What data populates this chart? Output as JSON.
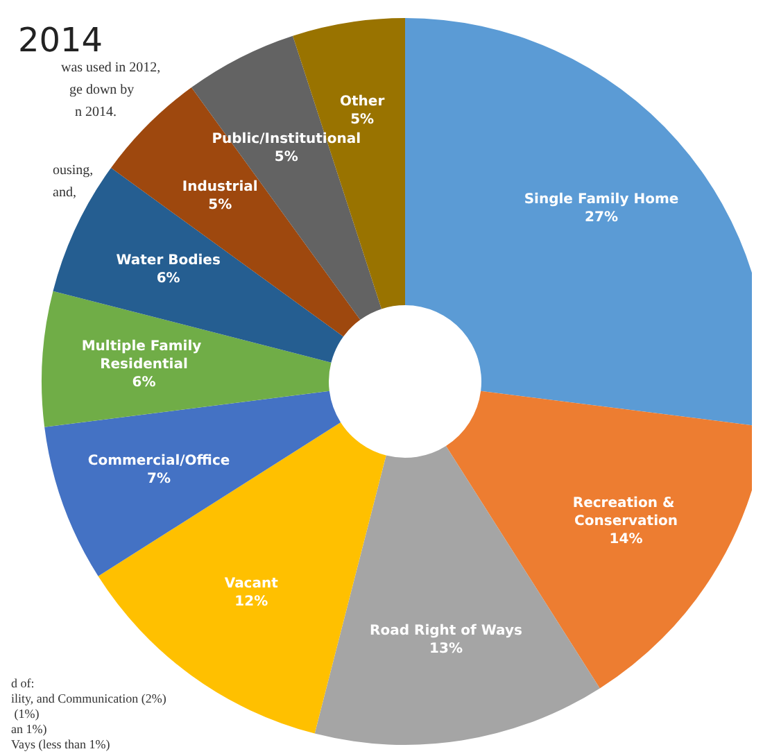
{
  "chart_data": {
    "type": "donut",
    "title": "2014",
    "annotations": [
      "was used in 2012,",
      "ge down by",
      "n 2014.",
      "ousing,",
      "and,",
      "d of:",
      "ility, and Communication (2%)",
      " (1%)",
      "an 1%)",
      "Vays (less than 1%)"
    ],
    "categories": [
      "Single Family Home",
      "Recreation & Conservation",
      "Road Right of Ways",
      "Vacant",
      "Commercial/Office",
      "Multiple Family Residential",
      "Water Bodies",
      "Industrial",
      "Public/Institutional",
      "Other"
    ],
    "values": [
      27,
      14,
      13,
      12,
      7,
      6,
      6,
      5,
      5,
      5
    ],
    "value_labels": [
      "27%",
      "14%",
      "13%",
      "12%",
      "7%",
      "6%",
      "6%",
      "5%",
      "5%",
      "5%"
    ],
    "colors": [
      "#5b9bd5",
      "#ed7d31",
      "#a5a5a5",
      "#ffc000",
      "#4472c4",
      "#70ad47",
      "#255e91",
      "#9e480e",
      "#636363",
      "#997300"
    ],
    "legend": false
  }
}
